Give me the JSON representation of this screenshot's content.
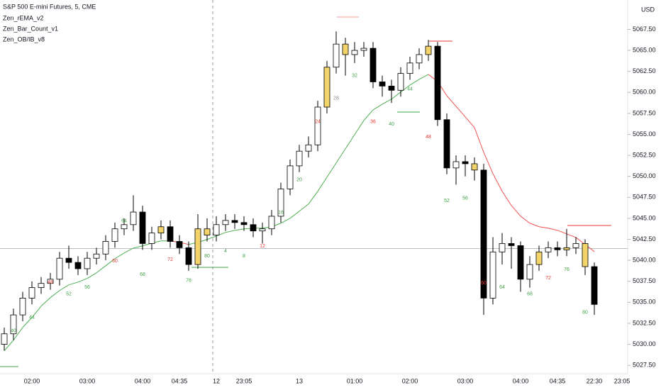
{
  "chart_data": {
    "type": "candlestick",
    "title": "S&P 500 E-mini Futures, 5, CME",
    "indicators": [
      "Zen_rEMA_v2",
      "Zen_Bar_Count_v1",
      "Zen_OB/IB_v8"
    ],
    "currency": "USD",
    "categories": [
      null,
      null,
      null,
      "02:00",
      null,
      null,
      null,
      null,
      null,
      "03:00",
      null,
      null,
      null,
      null,
      null,
      "04:00",
      null,
      null,
      null,
      "04:35",
      null,
      null,
      null,
      "12",
      null,
      null,
      "23:05",
      null,
      null,
      null,
      null,
      null,
      "13",
      null,
      null,
      null,
      null,
      null,
      "01:00",
      null,
      null,
      null,
      null,
      null,
      "02:00",
      null,
      null,
      null,
      null,
      null,
      "03:00",
      null,
      null,
      null,
      null,
      null,
      "04:00",
      null,
      null,
      null,
      "04:35",
      null,
      null,
      null,
      "22:30",
      null,
      null,
      "23:05"
    ],
    "open": [
      5030.0,
      5031.25,
      5033.5,
      5035.5,
      5036.75,
      5037.25,
      5037.75,
      5040.25,
      5039.75,
      5039.0,
      5040.25,
      5040.75,
      5042.25,
      5043.75,
      5044.25,
      5045.75,
      5042.0,
      5043.25,
      5044.0,
      5042.25,
      5041.5,
      5039.5,
      5043.75,
      5043.0,
      5044.25,
      5044.75,
      5044.5,
      5044.25,
      5043.5,
      5043.75,
      5045.25,
      5048.5,
      5051.25,
      5053.0,
      5053.75,
      5058.25,
      5063.0,
      5065.75,
      5064.5,
      5065.0,
      5065.25,
      5061.25,
      5060.75,
      5060.25,
      5062.25,
      5063.5,
      5064.5,
      5065.5,
      5056.75,
      5051.0,
      5051.75,
      5051.5,
      5050.75,
      5035.5,
      5041.0,
      5042.0,
      5041.75,
      5037.75,
      5039.5,
      5041.0,
      5041.5,
      5041.25,
      5041.5,
      5042.0,
      5039.25,
      null,
      null,
      null
    ],
    "high": [
      5032.0,
      5034.25,
      5036.25,
      5037.5,
      5038.0,
      5038.5,
      5041.0,
      5041.75,
      5040.5,
      5041.0,
      5041.5,
      5043.0,
      5044.5,
      5045.0,
      5047.75,
      5046.5,
      5044.0,
      5044.75,
      5044.75,
      5043.0,
      5042.25,
      5045.5,
      5045.0,
      5045.25,
      5045.5,
      5045.5,
      5045.25,
      5045.0,
      5044.5,
      5046.0,
      5049.25,
      5052.0,
      5053.75,
      5054.75,
      5059.0,
      5063.75,
      5067.25,
      5066.5,
      5066.0,
      5066.0,
      5066.0,
      5062.0,
      5061.5,
      5063.0,
      5064.25,
      5065.25,
      5066.25,
      5066.0,
      5057.5,
      5052.5,
      5052.5,
      5052.25,
      5051.5,
      5042.75,
      5043.25,
      5042.75,
      5042.25,
      5040.5,
      5041.75,
      5042.25,
      5042.25,
      5043.75,
      5042.75,
      5042.5,
      5039.75,
      null,
      null,
      null
    ],
    "low": [
      5029.25,
      5030.5,
      5032.75,
      5034.75,
      5036.0,
      5036.5,
      5037.0,
      5039.0,
      5038.25,
      5038.25,
      5039.5,
      5040.0,
      5041.5,
      5043.0,
      5043.5,
      5041.25,
      5041.25,
      5042.5,
      5041.5,
      5040.75,
      5038.75,
      5039.0,
      5042.25,
      5042.25,
      5043.5,
      5043.75,
      5043.5,
      5042.75,
      5042.0,
      5043.0,
      5044.5,
      5047.75,
      5050.5,
      5052.25,
      5053.0,
      5057.5,
      5062.25,
      5062.0,
      5063.5,
      5064.25,
      5060.5,
      5059.5,
      5058.75,
      5059.5,
      5061.5,
      5062.75,
      5063.75,
      5056.0,
      5050.25,
      5049.0,
      5050.0,
      5049.5,
      5033.5,
      5034.75,
      5039.5,
      5039.0,
      5036.25,
      5036.75,
      5038.75,
      5040.25,
      5040.5,
      5040.5,
      5040.75,
      5038.25,
      5033.5,
      null,
      null,
      null
    ],
    "close": [
      5031.25,
      5033.5,
      5035.5,
      5036.75,
      5037.25,
      5037.75,
      5040.25,
      5039.75,
      5039.0,
      5040.25,
      5040.75,
      5042.25,
      5043.75,
      5044.25,
      5045.75,
      5042.0,
      5043.25,
      5044.0,
      5042.25,
      5041.5,
      5039.5,
      5043.75,
      5043.0,
      5044.25,
      5044.75,
      5044.5,
      5044.25,
      5043.5,
      5043.75,
      5045.25,
      5048.5,
      5051.25,
      5053.0,
      5053.75,
      5058.25,
      5063.0,
      5065.75,
      5064.5,
      5065.0,
      5065.25,
      5061.25,
      5060.75,
      5060.25,
      5062.25,
      5063.5,
      5064.5,
      5065.5,
      5056.75,
      5051.0,
      5051.75,
      5051.5,
      5050.75,
      5035.5,
      5041.0,
      5042.0,
      5041.75,
      5037.75,
      5039.5,
      5041.0,
      5041.5,
      5041.25,
      5041.5,
      5042.0,
      5039.25,
      5034.75,
      null,
      null,
      null
    ],
    "up_color": "#ffffff",
    "down_color": "#000000",
    "highlight_indices": [
      17,
      21,
      22,
      35,
      37,
      46,
      51,
      58,
      61,
      63
    ],
    "highlight_color": "#f2d46b",
    "ema": {
      "values": [
        5029.23,
        5030.49,
        5032.01,
        5033.19,
        5034.54,
        5035.56,
        5036.4,
        5037.08,
        5037.41,
        5037.84,
        5038.51,
        5039.35,
        5040.2,
        5040.87,
        5041.46,
        5041.72,
        5042.05,
        5042.31,
        5042.31,
        5042.14,
        5041.89,
        5042.14,
        5042.48,
        5042.9,
        5043.32,
        5043.57,
        5043.74,
        5043.83,
        5043.83,
        5044.0,
        5044.42,
        5045.01,
        5045.85,
        5046.7,
        5048.22,
        5049.9,
        5051.59,
        5053.28,
        5054.97,
        5056.65,
        5057.92,
        5058.59,
        5059.19,
        5060.03,
        5060.87,
        5061.55,
        5062.14,
        5061.3,
        5059.61,
        5058.34,
        5057.08,
        5055.81,
        5052.86,
        5050.32,
        5048.22,
        5046.53,
        5045.26,
        5044.42,
        5044.0,
        5043.83,
        5043.57,
        5043.15,
        5042.73,
        5041.89,
        5041.04,
        null,
        null,
        null
      ],
      "rising_color": "#4caf50",
      "falling_color": "#ef5350"
    },
    "annotations": [
      {
        "index": 1,
        "text": "40",
        "price": 5031.6,
        "color": "#43a047"
      },
      {
        "index": 3,
        "text": "44",
        "price": 5033.2,
        "color": "#43a047"
      },
      {
        "index": 5,
        "text": "48",
        "price": 5037.4,
        "color": "#e53935"
      },
      {
        "index": 7,
        "text": "52",
        "price": 5036.0,
        "color": "#43a047"
      },
      {
        "index": 9,
        "text": "56",
        "price": 5036.8,
        "color": "#43a047"
      },
      {
        "index": 12,
        "text": "60",
        "price": 5039.9,
        "color": "#e53935"
      },
      {
        "index": 13,
        "text": "64",
        "price": 5044.7,
        "color": "#43a047"
      },
      {
        "index": 15,
        "text": "68",
        "price": 5038.3,
        "color": "#43a047"
      },
      {
        "index": 18,
        "text": "72",
        "price": 5040.1,
        "color": "#e53935"
      },
      {
        "index": 20,
        "text": "76",
        "price": 5037.6,
        "color": "#43a047"
      },
      {
        "index": 22,
        "text": "80",
        "price": 5040.5,
        "color": "#43a047"
      },
      {
        "index": 24,
        "text": "4",
        "price": 5041.1,
        "color": "#43a047"
      },
      {
        "index": 26,
        "text": "8",
        "price": 5040.5,
        "color": "#43a047"
      },
      {
        "index": 28,
        "text": "12",
        "price": 5041.7,
        "color": "#e53935"
      },
      {
        "index": 30,
        "text": "16",
        "price": 5045.7,
        "color": "#43a047"
      },
      {
        "index": 32,
        "text": "20",
        "price": 5049.6,
        "color": "#43a047"
      },
      {
        "index": 34,
        "text": "24",
        "price": 5056.5,
        "color": "#e53935"
      },
      {
        "index": 36,
        "text": "28",
        "price": 5059.3,
        "color": "#888888"
      },
      {
        "index": 38,
        "text": "32",
        "price": 5062.0,
        "color": "#43a047"
      },
      {
        "index": 40,
        "text": "36",
        "price": 5056.5,
        "color": "#e53935"
      },
      {
        "index": 42,
        "text": "40",
        "price": 5056.2,
        "color": "#43a047"
      },
      {
        "index": 44,
        "text": "44",
        "price": 5060.4,
        "color": "#43a047"
      },
      {
        "index": 46,
        "text": "48",
        "price": 5054.7,
        "color": "#e53935"
      },
      {
        "index": 48,
        "text": "52",
        "price": 5047.1,
        "color": "#43a047"
      },
      {
        "index": 50,
        "text": "56",
        "price": 5047.4,
        "color": "#43a047"
      },
      {
        "index": 52,
        "text": "60",
        "price": 5037.3,
        "color": "#e53935"
      },
      {
        "index": 54,
        "text": "64",
        "price": 5036.8,
        "color": "#43a047"
      },
      {
        "index": 57,
        "text": "68",
        "price": 5036.0,
        "color": "#43a047"
      },
      {
        "index": 59,
        "text": "72",
        "price": 5037.9,
        "color": "#e53935"
      },
      {
        "index": 61,
        "text": "76",
        "price": 5038.9,
        "color": "#43a047"
      },
      {
        "index": 63,
        "text": "80",
        "price": 5033.8,
        "color": "#43a047"
      }
    ],
    "price_line": 5041.4,
    "ylim": [
      5026.5,
      5071
    ],
    "yticks": [
      {
        "value": 5027.5,
        "label": "5027.50"
      },
      {
        "value": 5030,
        "label": "5030.00"
      },
      {
        "value": 5032.5,
        "label": "5032.50"
      },
      {
        "value": 5035,
        "label": "5035.00"
      },
      {
        "value": 5037.5,
        "label": "5037.50"
      },
      {
        "value": 5040,
        "label": "5040.00"
      },
      {
        "value": 5042.5,
        "label": "5042.50"
      },
      {
        "value": 5045,
        "label": "5045.00"
      },
      {
        "value": 5047.5,
        "label": "5047.50"
      },
      {
        "value": 5050,
        "label": "5050.00"
      },
      {
        "value": 5052.5,
        "label": "5052.50"
      },
      {
        "value": 5055,
        "label": "5055.00"
      },
      {
        "value": 5057.5,
        "label": "5057.50"
      },
      {
        "value": 5060,
        "label": "5060.00"
      },
      {
        "value": 5062.5,
        "label": "5062.50"
      },
      {
        "value": 5065,
        "label": "5065.00"
      },
      {
        "value": 5067.5,
        "label": "5067.50"
      }
    ]
  }
}
